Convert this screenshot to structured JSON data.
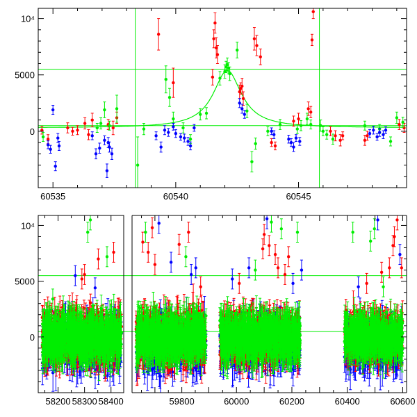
{
  "chart_data": [
    {
      "type": "scatter",
      "title": "",
      "xlabel": "",
      "ylabel": "",
      "xlim": [
        60534.4,
        60549.4
      ],
      "ylim": [
        -5000,
        10900
      ],
      "grid": false,
      "x_ticks": [
        60535,
        60540,
        60545
      ],
      "y_ticks": [
        0,
        5000,
        10000
      ],
      "y_tick_labels": [
        "0",
        "5000",
        "10⁴"
      ],
      "hlines": [
        5500,
        500
      ],
      "vlines": [
        60538.35,
        60545.85
      ],
      "colors": {
        "red": "#ff0000",
        "green": "#00ee00",
        "blue": "#0000ff"
      },
      "series": [
        {
          "color": "red",
          "points": [
            [
              60534.55,
              100,
              350
            ],
            [
              60534.8,
              -700,
              400
            ],
            [
              60535.6,
              300,
              450
            ],
            [
              60535.8,
              0,
              350
            ],
            [
              60536.0,
              100,
              400
            ],
            [
              60536.3,
              700,
              500
            ],
            [
              60536.45,
              -300,
              450
            ],
            [
              60536.6,
              1000,
              600
            ],
            [
              60537.25,
              600,
              450
            ],
            [
              60537.45,
              300,
              600
            ],
            [
              60537.6,
              1200,
              500
            ],
            [
              60539.3,
              8600,
              1400
            ],
            [
              60539.9,
              4300,
              1300
            ],
            [
              60541.5,
              4800,
              700
            ],
            [
              60541.55,
              8200,
              800
            ],
            [
              60541.6,
              9600,
              900
            ],
            [
              60541.65,
              7400,
              900
            ],
            [
              60541.7,
              6800,
              800
            ],
            [
              60542.6,
              3500,
              600
            ],
            [
              60542.65,
              3800,
              500
            ],
            [
              60542.7,
              4000,
              700
            ],
            [
              60542.75,
              2900,
              600
            ],
            [
              60543.2,
              8200,
              1000
            ],
            [
              60543.3,
              7600,
              900
            ],
            [
              60543.45,
              6600,
              700
            ],
            [
              60543.9,
              -1000,
              350
            ],
            [
              60544.05,
              -1300,
              350
            ],
            [
              60544.8,
              900,
              450
            ],
            [
              60545.0,
              1100,
              500
            ],
            [
              60545.4,
              2000,
              600
            ],
            [
              60545.5,
              1700,
              500
            ],
            [
              60545.55,
              8100,
              500
            ],
            [
              60545.6,
              10600,
              600
            ],
            [
              60546.3,
              0,
              400
            ],
            [
              60546.5,
              -400,
              450
            ],
            [
              60546.7,
              -800,
              500
            ],
            [
              60546.8,
              -400,
              350
            ],
            [
              60547.7,
              -800,
              450
            ],
            [
              60547.8,
              -400,
              400
            ],
            [
              60549.1,
              600,
              450
            ],
            [
              60549.3,
              300,
              400
            ]
          ]
        },
        {
          "color": "green",
          "points": [
            [
              60534.6,
              -500,
              400
            ],
            [
              60536.8,
              300,
              400
            ],
            [
              60536.95,
              700,
              500
            ],
            [
              60537.1,
              1900,
              700
            ],
            [
              60537.3,
              500,
              400
            ],
            [
              60537.6,
              2000,
              1200
            ],
            [
              60538.45,
              -3000,
              2500
            ],
            [
              60538.7,
              200,
              500
            ],
            [
              60539.6,
              4600,
              1200
            ],
            [
              60539.75,
              3000,
              800
            ],
            [
              60539.9,
              1100,
              600
            ],
            [
              60540.3,
              300,
              450
            ],
            [
              60540.6,
              -700,
              400
            ],
            [
              60541.0,
              1500,
              500
            ],
            [
              60541.25,
              1600,
              500
            ],
            [
              60541.8,
              4700,
              600
            ],
            [
              60542.0,
              5300,
              600
            ],
            [
              60542.05,
              5700,
              500
            ],
            [
              60542.1,
              5900,
              600
            ],
            [
              60542.15,
              5600,
              500
            ],
            [
              60542.2,
              5100,
              600
            ],
            [
              60542.5,
              7200,
              700
            ],
            [
              60542.9,
              1800,
              600
            ],
            [
              60543.1,
              -2700,
              900
            ],
            [
              60543.25,
              -1100,
              500
            ],
            [
              60543.75,
              0,
              400
            ],
            [
              60544.25,
              600,
              450
            ],
            [
              60544.95,
              200,
              400
            ],
            [
              60545.1,
              500,
              450
            ],
            [
              60545.35,
              1100,
              500
            ],
            [
              60545.5,
              600,
              400
            ],
            [
              60545.9,
              500,
              500
            ],
            [
              60546.0,
              0,
              400
            ],
            [
              60546.15,
              -300,
              400
            ],
            [
              60546.4,
              -700,
              450
            ],
            [
              60547.7,
              500,
              400
            ],
            [
              60548.3,
              200,
              400
            ],
            [
              60548.75,
              -900,
              400
            ],
            [
              60549.0,
              1200,
              500
            ],
            [
              60549.25,
              800,
              450
            ]
          ]
        },
        {
          "color": "blue",
          "points": [
            [
              60534.8,
              -1200,
              350
            ],
            [
              60534.9,
              -1600,
              350
            ],
            [
              60535.0,
              1900,
              400
            ],
            [
              60535.1,
              -3100,
              400
            ],
            [
              60535.2,
              -600,
              400
            ],
            [
              60535.25,
              -1300,
              400
            ],
            [
              60536.6,
              -400,
              350
            ],
            [
              60536.75,
              -2000,
              450
            ],
            [
              60536.9,
              -1500,
              450
            ],
            [
              60537.1,
              -800,
              400
            ],
            [
              60537.2,
              -3500,
              600
            ],
            [
              60537.25,
              -1000,
              450
            ],
            [
              60537.3,
              -1400,
              450
            ],
            [
              60537.4,
              -2000,
              500
            ],
            [
              60539.2,
              -400,
              350
            ],
            [
              60539.4,
              -1400,
              450
            ],
            [
              60539.55,
              100,
              400
            ],
            [
              60539.7,
              -100,
              350
            ],
            [
              60539.9,
              400,
              300
            ],
            [
              60540.0,
              -200,
              350
            ],
            [
              60540.2,
              -500,
              300
            ],
            [
              60540.35,
              -600,
              350
            ],
            [
              60540.5,
              -900,
              350
            ],
            [
              60540.6,
              -1300,
              350
            ],
            [
              60540.75,
              300,
              300
            ],
            [
              60542.6,
              2500,
              400
            ],
            [
              60542.7,
              2000,
              400
            ],
            [
              60542.8,
              1500,
              350
            ],
            [
              60543.9,
              0,
              300
            ],
            [
              60544.0,
              -300,
              350
            ],
            [
              60544.6,
              -700,
              350
            ],
            [
              60544.7,
              -1000,
              350
            ],
            [
              60544.8,
              -1400,
              400
            ],
            [
              60544.9,
              -600,
              300
            ],
            [
              60545.05,
              -900,
              350
            ],
            [
              60547.9,
              -200,
              350
            ],
            [
              60548.05,
              100,
              350
            ],
            [
              60548.2,
              -500,
              300
            ],
            [
              60548.3,
              -100,
              350
            ],
            [
              60548.45,
              -300,
              350
            ],
            [
              60548.55,
              100,
              300
            ]
          ]
        }
      ],
      "fit_curve": {
        "color": "green",
        "center": 60542.1,
        "peak": 5400,
        "width_days": 0.7,
        "baseline": 300
      }
    },
    {
      "type": "scatter",
      "title": "",
      "xlabel": "",
      "ylabel": "",
      "ylim": [
        -5000,
        10900
      ],
      "grid": false,
      "segments": [
        {
          "xlim": [
            58125,
            58448
          ],
          "x_ticks": [
            58200,
            58300,
            58400
          ]
        },
        {
          "xlim": [
            59615,
            59894
          ],
          "x_ticks": [
            59800
          ]
        },
        {
          "xlim": [
            59894,
            60614
          ],
          "x_ticks": [
            60000,
            60200,
            60400,
            60600
          ]
        }
      ],
      "y_ticks": [
        0,
        5000,
        10000
      ],
      "y_tick_labels": [
        "0",
        "5000",
        "10⁴"
      ],
      "hlines": [
        5500,
        500
      ],
      "clusters": [
        {
          "x_range": [
            58140,
            58440
          ],
          "spread": 1500
        },
        {
          "x_range": [
            59630,
            59890
          ],
          "spread": 1600
        },
        {
          "x_range": [
            59940,
            60230
          ],
          "spread": 1500
        },
        {
          "x_range": [
            60390,
            60600
          ],
          "spread": 1400
        }
      ],
      "outliers": [
        [
          58180,
          3400,
          "green"
        ],
        [
          58265,
          5500,
          "blue"
        ],
        [
          58290,
          5200,
          "red"
        ],
        [
          58300,
          5600,
          "red"
        ],
        [
          58340,
          4400,
          "blue"
        ],
        [
          58352,
          7000,
          "red"
        ],
        [
          58385,
          7200,
          "green"
        ],
        [
          58410,
          7600,
          "red"
        ],
        [
          58312,
          9400,
          "green"
        ],
        [
          58322,
          10500,
          "green"
        ],
        [
          59655,
          8500,
          "red"
        ],
        [
          59665,
          9400,
          "green"
        ],
        [
          59675,
          7600,
          "red"
        ],
        [
          59690,
          9800,
          "red"
        ],
        [
          59700,
          6500,
          "red"
        ],
        [
          59715,
          10200,
          "blue"
        ],
        [
          59760,
          6700,
          "blue"
        ],
        [
          59790,
          8300,
          "red"
        ],
        [
          59815,
          7200,
          "green"
        ],
        [
          59825,
          9400,
          "red"
        ],
        [
          59835,
          5600,
          "blue"
        ],
        [
          59852,
          6200,
          "blue"
        ],
        [
          59870,
          4500,
          "red"
        ],
        [
          59985,
          5200,
          "blue"
        ],
        [
          60010,
          4800,
          "red"
        ],
        [
          60045,
          6200,
          "blue"
        ],
        [
          60068,
          6000,
          "green"
        ],
        [
          60095,
          7900,
          "red"
        ],
        [
          60100,
          9200,
          "red"
        ],
        [
          60110,
          10600,
          "blue"
        ],
        [
          60118,
          8200,
          "red"
        ],
        [
          60126,
          10300,
          "green"
        ],
        [
          60140,
          7400,
          "red"
        ],
        [
          60150,
          6200,
          "red"
        ],
        [
          60162,
          9700,
          "green"
        ],
        [
          60175,
          5600,
          "red"
        ],
        [
          60188,
          7200,
          "red"
        ],
        [
          60204,
          4800,
          "blue"
        ],
        [
          60220,
          9400,
          "green"
        ],
        [
          60235,
          6000,
          "blue"
        ],
        [
          60420,
          9400,
          "green"
        ],
        [
          60440,
          4500,
          "blue"
        ],
        [
          60470,
          4800,
          "red"
        ],
        [
          60484,
          8600,
          "green"
        ],
        [
          60498,
          9700,
          "green"
        ],
        [
          60510,
          10500,
          "blue"
        ],
        [
          60524,
          5800,
          "red"
        ],
        [
          60530,
          4500,
          "green"
        ],
        [
          60552,
          6200,
          "red"
        ],
        [
          60565,
          8200,
          "red"
        ],
        [
          60570,
          9000,
          "red"
        ],
        [
          60580,
          10500,
          "red"
        ],
        [
          60590,
          7400,
          "blue"
        ],
        [
          60596,
          6200,
          "red"
        ]
      ]
    }
  ]
}
